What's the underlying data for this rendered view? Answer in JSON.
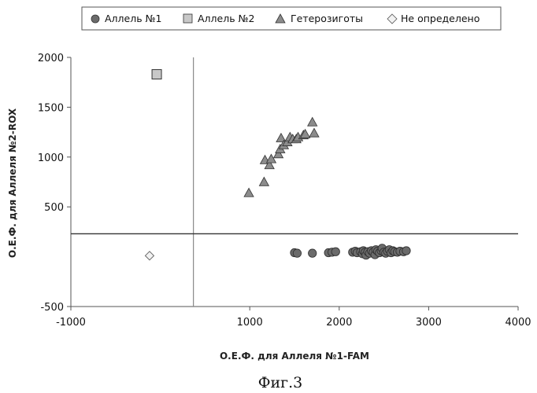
{
  "chart_data": {
    "type": "scatter",
    "title": "",
    "xlabel": "О.Е.Ф. для Аллеля №1-FAM",
    "ylabel": "О.Е.Ф. для Аллеля №2-ROX",
    "xlim": [
      -1000,
      4000
    ],
    "ylim": [
      -500,
      2000
    ],
    "x_ticks": [
      -1000,
      1000,
      2000,
      3000,
      4000
    ],
    "y_ticks": [
      -500,
      500,
      1000,
      1500,
      2000
    ],
    "x_tick_labels": [
      "-1000",
      "1000",
      "2000",
      "3000",
      "4000"
    ],
    "y_tick_labels": [
      "-500",
      "500",
      "1000",
      "1500",
      "2000"
    ],
    "threshold_lines": {
      "x": 370,
      "y": 230
    },
    "grid": false,
    "legend_position": "top",
    "caption": "Фиг.3",
    "series": [
      {
        "name": "Аллель №1",
        "marker": "circle",
        "color": "#6b6b6b",
        "points": [
          [
            1500,
            40
          ],
          [
            1530,
            35
          ],
          [
            1700,
            35
          ],
          [
            1880,
            40
          ],
          [
            1920,
            45
          ],
          [
            1960,
            50
          ],
          [
            2150,
            45
          ],
          [
            2180,
            55
          ],
          [
            2200,
            40
          ],
          [
            2240,
            50
          ],
          [
            2260,
            30
          ],
          [
            2270,
            60
          ],
          [
            2290,
            45
          ],
          [
            2300,
            15
          ],
          [
            2320,
            50
          ],
          [
            2340,
            35
          ],
          [
            2360,
            60
          ],
          [
            2380,
            45
          ],
          [
            2400,
            20
          ],
          [
            2410,
            70
          ],
          [
            2430,
            55
          ],
          [
            2450,
            40
          ],
          [
            2470,
            60
          ],
          [
            2480,
            85
          ],
          [
            2500,
            45
          ],
          [
            2520,
            35
          ],
          [
            2540,
            55
          ],
          [
            2560,
            70
          ],
          [
            2580,
            40
          ],
          [
            2600,
            60
          ],
          [
            2620,
            50
          ],
          [
            2650,
            45
          ],
          [
            2680,
            55
          ],
          [
            2720,
            50
          ],
          [
            2750,
            60
          ]
        ]
      },
      {
        "name": "Аллель №2",
        "marker": "square",
        "color": "#c8c8c8",
        "points": [
          [
            -40,
            1830
          ]
        ]
      },
      {
        "name": "Гетерозиготы",
        "marker": "triangle",
        "color": "#8c8c8c",
        "points": [
          [
            990,
            640
          ],
          [
            1160,
            750
          ],
          [
            1170,
            970
          ],
          [
            1220,
            920
          ],
          [
            1240,
            980
          ],
          [
            1320,
            1030
          ],
          [
            1340,
            1080
          ],
          [
            1350,
            1190
          ],
          [
            1380,
            1120
          ],
          [
            1420,
            1150
          ],
          [
            1450,
            1200
          ],
          [
            1480,
            1180
          ],
          [
            1520,
            1180
          ],
          [
            1540,
            1200
          ],
          [
            1600,
            1220
          ],
          [
            1620,
            1230
          ],
          [
            1700,
            1350
          ],
          [
            1720,
            1240
          ]
        ]
      },
      {
        "name": "Не определено",
        "marker": "diamond",
        "color": "#f2f2f2",
        "points": [
          [
            -120,
            10
          ]
        ]
      }
    ]
  }
}
